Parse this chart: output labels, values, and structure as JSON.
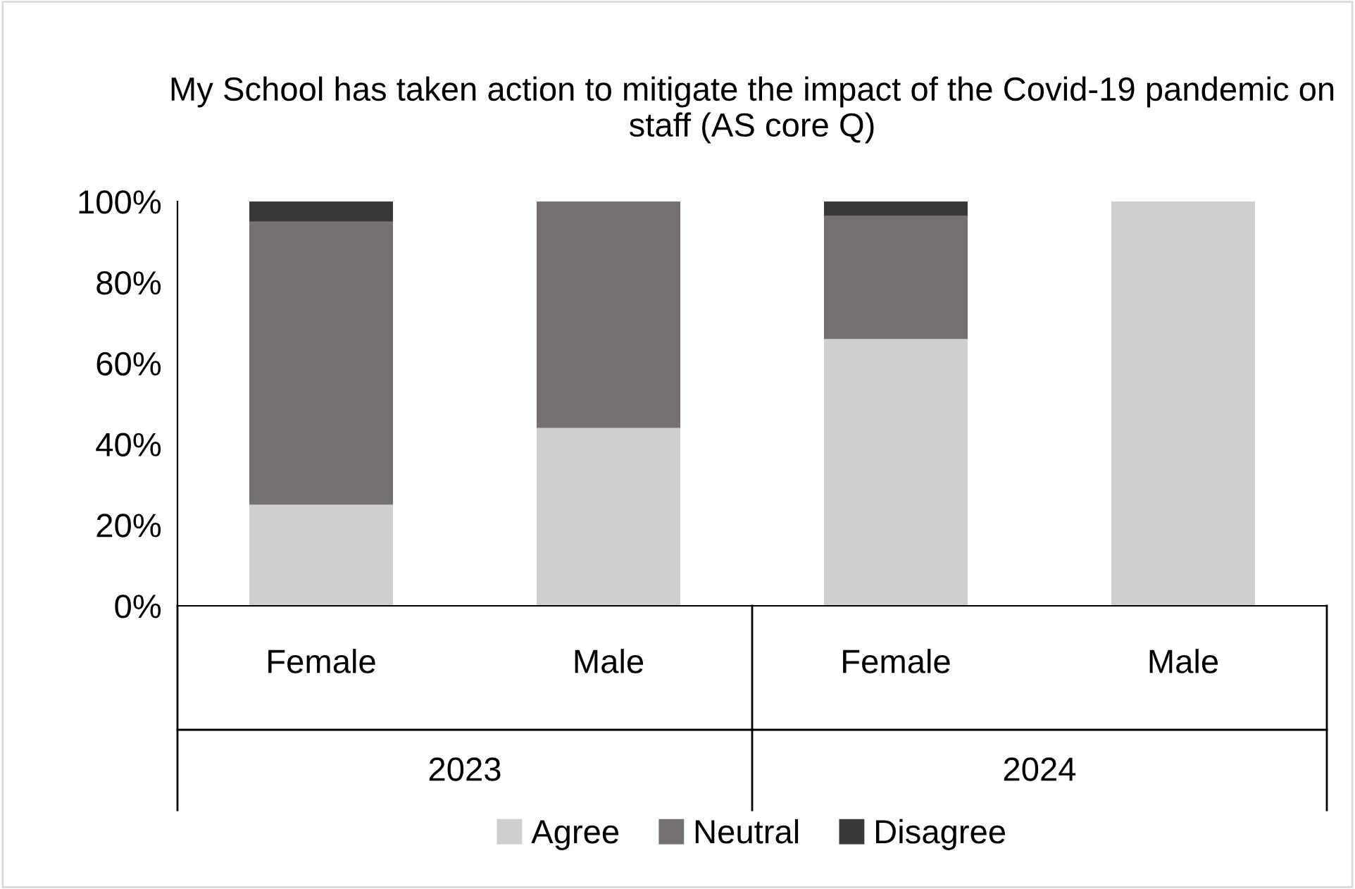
{
  "chart_data": {
    "type": "bar",
    "stacked": true,
    "title": "My School has taken action to mitigate the impact of the Covid-19 pandemic on staff (AS core Q)",
    "categories": [
      "Female",
      "Male",
      "Female",
      "Male"
    ],
    "annotations": [
      "2023",
      "2024"
    ],
    "series": [
      {
        "name": "Agree",
        "color": "#d0cece",
        "values": [
          25,
          44,
          66,
          100
        ]
      },
      {
        "name": "Neutral",
        "color": "#767171",
        "values": [
          70,
          56,
          30.5,
          0
        ]
      },
      {
        "name": "Disagree",
        "color": "#3b3838",
        "values": [
          5,
          0,
          3.5,
          0
        ]
      }
    ],
    "ylim": [
      0,
      100
    ],
    "yticks": [
      {
        "value": 0,
        "label": "0%"
      },
      {
        "value": 20,
        "label": "20%"
      },
      {
        "value": 40,
        "label": "40%"
      },
      {
        "value": 60,
        "label": "60%"
      },
      {
        "value": 80,
        "label": "80%"
      },
      {
        "value": 100,
        "label": "100%"
      }
    ],
    "grid": false,
    "legend": "bottom"
  }
}
